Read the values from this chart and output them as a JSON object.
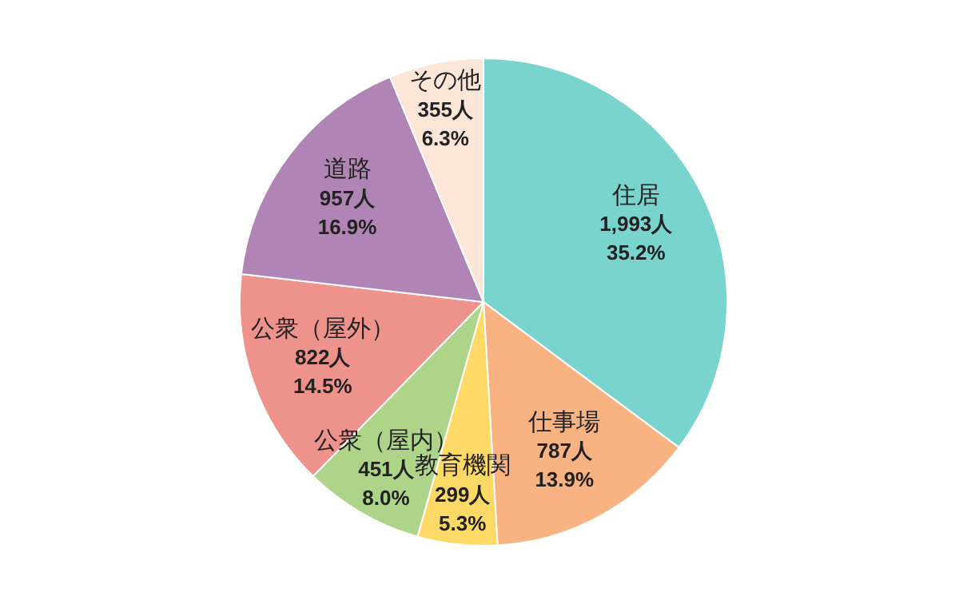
{
  "chart_data": {
    "type": "pie",
    "categories": [
      "住居",
      "仕事場",
      "教育機関",
      "公衆（屋内）",
      "公衆（屋外）",
      "道路",
      "その他"
    ],
    "values": [
      1993,
      787,
      299,
      451,
      822,
      957,
      355
    ],
    "value_labels": [
      "1,993人\n35.2%",
      "787人\n13.9%",
      "299人\n5.3%",
      "451人\n8.0%",
      "822人\n14.5%",
      "957人\n16.9%",
      "355人\n6.3%"
    ],
    "colors": [
      "#78d4cd",
      "#f9b383",
      "#ffd966",
      "#aed48a",
      "#ee928c",
      "#b085b5",
      "#fde5d8"
    ],
    "legend": false
  }
}
